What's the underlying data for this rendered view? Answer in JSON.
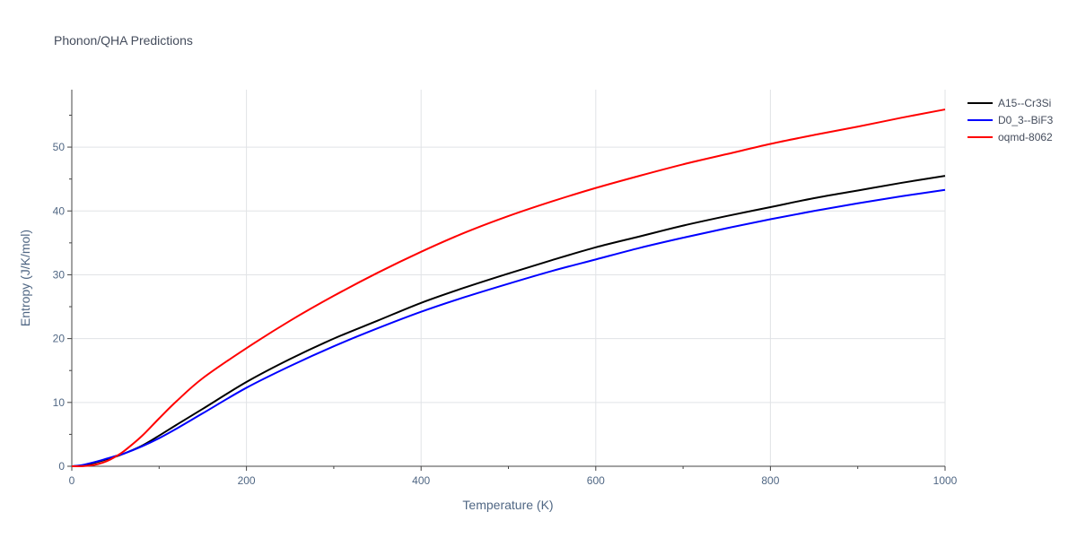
{
  "chart_data": {
    "type": "line",
    "title": "Phonon/QHA Predictions",
    "xlabel": "Temperature (K)",
    "ylabel": "Entropy (J/K/mol)",
    "xlim": [
      0,
      1000
    ],
    "ylim": [
      0,
      59
    ],
    "x_ticks": [
      0,
      200,
      400,
      600,
      800,
      1000
    ],
    "x_tick_labels": [
      "0",
      "200",
      "400",
      "600",
      "800",
      "1000"
    ],
    "y_ticks": [
      0,
      10,
      20,
      30,
      40,
      50
    ],
    "y_tick_labels": [
      "0",
      "10",
      "20",
      "30",
      "40",
      "50"
    ],
    "grid": true,
    "legend_position": "top-right",
    "series": [
      {
        "name": "A15--Cr3Si",
        "color": "#000000",
        "x": [
          0,
          10,
          20,
          30,
          40,
          50,
          60,
          80,
          100,
          120,
          150,
          200,
          250,
          300,
          350,
          400,
          450,
          500,
          550,
          600,
          650,
          700,
          750,
          800,
          850,
          900,
          950,
          1000
        ],
        "y": [
          0,
          0.1,
          0.35,
          0.7,
          1.1,
          1.5,
          2.0,
          3.2,
          4.8,
          6.5,
          9.0,
          13.2,
          16.8,
          20.0,
          22.8,
          25.6,
          28.0,
          30.2,
          32.3,
          34.3,
          36.0,
          37.7,
          39.2,
          40.6,
          42.0,
          43.2,
          44.4,
          45.5
        ]
      },
      {
        "name": "D0_3--BiF3",
        "color": "#0000ff",
        "x": [
          0,
          10,
          20,
          30,
          40,
          50,
          60,
          80,
          100,
          120,
          150,
          200,
          250,
          300,
          350,
          400,
          450,
          500,
          550,
          600,
          650,
          700,
          750,
          800,
          850,
          900,
          950,
          1000
        ],
        "y": [
          0,
          0.15,
          0.45,
          0.8,
          1.2,
          1.6,
          2.0,
          3.1,
          4.4,
          5.9,
          8.3,
          12.3,
          15.7,
          18.8,
          21.6,
          24.2,
          26.5,
          28.6,
          30.6,
          32.4,
          34.2,
          35.8,
          37.3,
          38.7,
          40.0,
          41.2,
          42.3,
          43.3
        ]
      },
      {
        "name": "oqmd-8062",
        "color": "#ff0000",
        "x": [
          0,
          10,
          20,
          30,
          40,
          50,
          60,
          80,
          100,
          120,
          150,
          200,
          250,
          300,
          350,
          400,
          450,
          500,
          550,
          600,
          650,
          700,
          750,
          800,
          850,
          900,
          950,
          1000
        ],
        "y": [
          0,
          0.0,
          0.1,
          0.35,
          0.8,
          1.5,
          2.4,
          4.7,
          7.5,
          10.2,
          13.8,
          18.5,
          22.8,
          26.7,
          30.3,
          33.6,
          36.6,
          39.2,
          41.5,
          43.6,
          45.5,
          47.3,
          48.9,
          50.5,
          51.9,
          53.2,
          54.6,
          55.9
        ]
      }
    ]
  }
}
